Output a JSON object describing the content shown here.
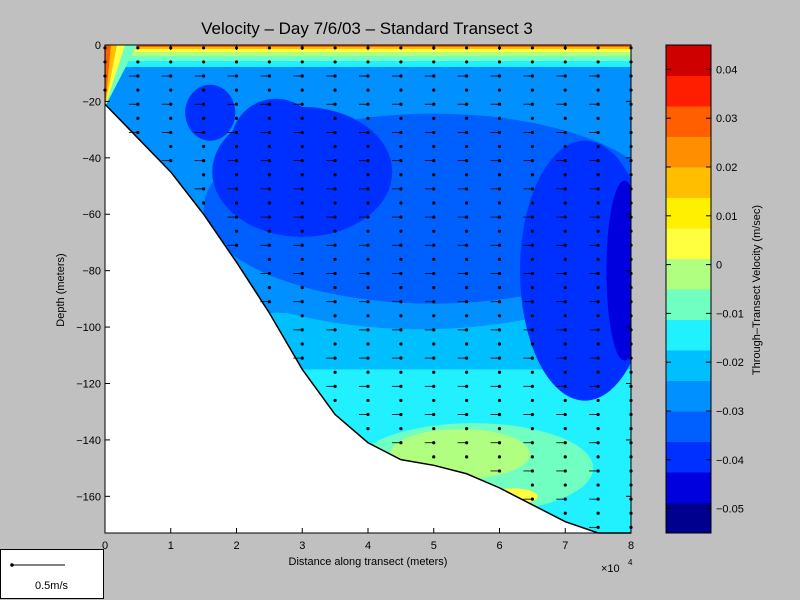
{
  "chart_data": {
    "type": "contour",
    "title": "Velocity – Day 7/6/03 – Standard Transect 3",
    "xlabel": "Distance along transect (meters)",
    "ylabel": "Depth (meters)",
    "x_multiplier_label": "×10",
    "x_multiplier_exp": "4",
    "xlim": [
      0,
      8
    ],
    "ylim": [
      -173,
      0
    ],
    "xticks": [
      0,
      1,
      2,
      3,
      4,
      5,
      6,
      7,
      8
    ],
    "yticks": [
      0,
      -20,
      -40,
      -60,
      -80,
      -100,
      -120,
      -140,
      -160
    ],
    "colorbar": {
      "label": "Through–Transect Velocity (m/sec)",
      "range": [
        -0.055,
        0.045
      ],
      "ticks": [
        0.04,
        0.03,
        0.02,
        0.01,
        0,
        -0.01,
        -0.02,
        -0.03,
        -0.04,
        -0.05
      ],
      "colors": [
        "#00008f",
        "#0000df",
        "#0030ff",
        "#0060ff",
        "#0090ff",
        "#00bfff",
        "#20f0ff",
        "#70ffc0",
        "#b0ff80",
        "#ffff40",
        "#ffef00",
        "#ffbf00",
        "#ff8f00",
        "#ff5f00",
        "#ff1f00",
        "#cf0000"
      ]
    },
    "bottom_profile": {
      "x": [
        0,
        0.5,
        1.0,
        1.5,
        2.0,
        2.5,
        3.0,
        3.5,
        4.0,
        4.5,
        5.0,
        5.5,
        6.0,
        6.5,
        7.0,
        7.5,
        8.0
      ],
      "depth": [
        -21,
        -33,
        -45,
        -60,
        -77,
        -95,
        -115,
        -131,
        -141,
        -147,
        -149,
        -152,
        -157,
        -163,
        -169,
        -173,
        -173
      ]
    },
    "profile_stations_x": [
      0,
      0.5,
      1.0,
      1.5,
      2.0,
      2.5,
      3.0,
      3.5,
      4.0,
      4.5,
      5.0,
      5.5,
      6.0,
      6.5,
      7.0,
      7.5,
      8.0
    ]
  },
  "scale_legend": {
    "label": "0.5m/s"
  }
}
